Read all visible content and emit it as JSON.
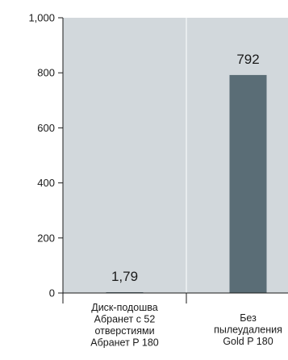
{
  "chart_data": {
    "type": "bar",
    "categories": [
      [
        "Диск-подошва",
        "Абранет с 52",
        "отверстиями",
        "Абранет P 180"
      ],
      [
        "Без",
        "пылеудаления",
        "Gold P 180"
      ]
    ],
    "values": [
      1.79,
      792
    ],
    "value_labels": [
      "1,79",
      "792"
    ],
    "ylim": [
      0,
      1000
    ],
    "yticks": [
      0,
      200,
      400,
      600,
      800,
      1000
    ],
    "ytick_labels": [
      "0",
      "200",
      "400",
      "600",
      "800",
      "1,000"
    ],
    "grid": "vertical category separators only",
    "legend": "none",
    "colors": {
      "plot_background": "#d2d8dc",
      "bar": "#5a6d76",
      "axis": "#1a1a1a",
      "separator": "#ffffff"
    }
  }
}
